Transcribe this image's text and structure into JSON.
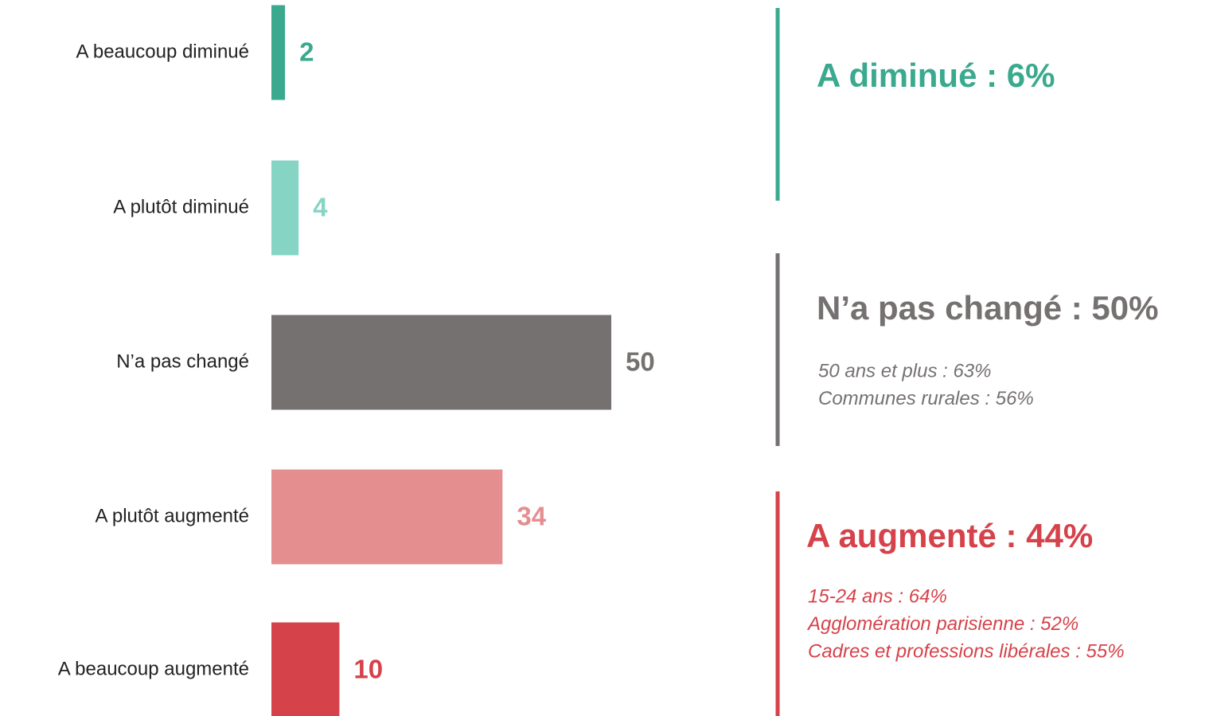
{
  "chart_data": {
    "type": "bar",
    "orientation": "horizontal",
    "categories": [
      "A beaucoup diminué",
      "A plutôt diminué",
      "N’a pas changé",
      "A plutôt augmenté",
      "A beaucoup augmenté"
    ],
    "values": [
      2,
      4,
      50,
      34,
      10
    ],
    "colors": [
      "#3aa98e",
      "#86d5c4",
      "#757170",
      "#e58e90",
      "#d6424a"
    ],
    "annotations": [
      {
        "title": "A diminué : 6%",
        "color": "#3aa98e",
        "lines": []
      },
      {
        "title": "N’a pas changé : 50%",
        "color": "#757170",
        "lines": [
          "50 ans et plus : 63%",
          "Communes rurales : 56%"
        ]
      },
      {
        "title": "A augmenté : 44%",
        "color": "#d6424a",
        "lines": [
          "15-24 ans : 64%",
          "Agglomération parisienne : 52%",
          "Cadres et professions libérales : 55%"
        ]
      }
    ]
  }
}
